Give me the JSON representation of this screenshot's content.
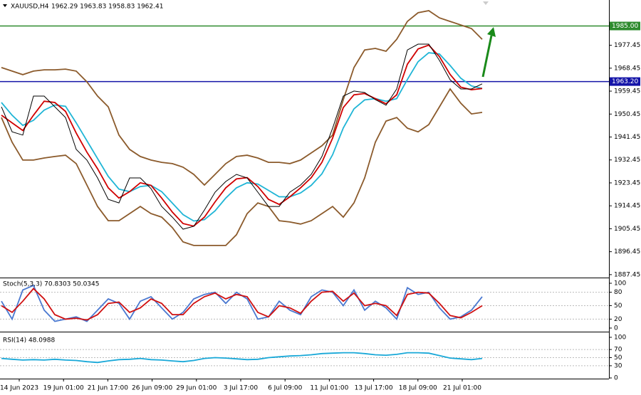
{
  "chart_data": [
    {
      "type": "line",
      "title": "XAUUSD,H4",
      "ohlc": "1962.29 1963.83 1958.83 1962.41",
      "ylim": [
        1886.3,
        1995.2
      ],
      "yticks": [
        1977.45,
        1968.45,
        1959.45,
        1950.45,
        1941.45,
        1932.45,
        1923.45,
        1914.45,
        1905.45,
        1896.45,
        1887.45
      ],
      "levels": [
        {
          "value": 1985,
          "label": "1985.00",
          "color": "#2e8b2e"
        },
        {
          "value": 1963.2,
          "label": "1963.20",
          "color": "#1414a8"
        }
      ],
      "x_labels": [
        "14 Jun 2023",
        "19 Jun 01:00",
        "21 Jun 17:00",
        "26 Jun 09:00",
        "29 Jun 01:00",
        "3 Jul 17:00",
        "6 Jul 09:00",
        "11 Jul 01:00",
        "13 Jul 17:00",
        "18 Jul 09:00",
        "21 Jul 01:00"
      ],
      "series": [
        {
          "name": "upper",
          "color": "#8b5a2b",
          "values": [
            1968.7,
            1967.3,
            1965.9,
            1967.3,
            1967.8,
            1967.8,
            1968.1,
            1967.3,
            1963.1,
            1957.5,
            1953.3,
            1942.2,
            1936.6,
            1933.8,
            1932.4,
            1931.5,
            1931.0,
            1929.6,
            1926.8,
            1922.6,
            1926.8,
            1931.0,
            1933.8,
            1934.3,
            1933.2,
            1931.5,
            1931.5,
            1931.0,
            1932.4,
            1935.2,
            1938.0,
            1942.2,
            1956.1,
            1968.7,
            1975.6,
            1976.2,
            1975.1,
            1979.8,
            1986.8,
            1990.2,
            1991.0,
            1988.2,
            1986.8,
            1985.4,
            1984.0,
            1979.8
          ]
        },
        {
          "name": "lower",
          "color": "#8b5a2b",
          "values": [
            1949.1,
            1939.4,
            1932.4,
            1932.4,
            1933.2,
            1933.8,
            1934.3,
            1931.0,
            1922.6,
            1914.2,
            1908.6,
            1908.6,
            1911.4,
            1914.2,
            1911.4,
            1910.0,
            1905.9,
            1900.3,
            1898.9,
            1898.9,
            1898.9,
            1898.9,
            1903.1,
            1911.4,
            1915.6,
            1914.2,
            1908.6,
            1908.1,
            1907.3,
            1908.6,
            1911.4,
            1914.2,
            1910.0,
            1915.6,
            1925.4,
            1939.4,
            1947.7,
            1949.1,
            1944.9,
            1943.5,
            1946.3,
            1953.3,
            1960.3,
            1954.7,
            1950.5,
            1951.1
          ]
        },
        {
          "name": "slow",
          "color": "#1fb5d6",
          "values": [
            1955,
            1950,
            1946,
            1948,
            1952,
            1954,
            1953.5,
            1947,
            1940,
            1933,
            1926,
            1921,
            1920,
            1922,
            1922.5,
            1920,
            1915.5,
            1911,
            1908.5,
            1909,
            1912.5,
            1917.5,
            1921.5,
            1923.5,
            1923,
            1920.5,
            1918,
            1918,
            1919.5,
            1922.5,
            1927,
            1934.5,
            1945,
            1952.5,
            1956,
            1956.5,
            1955.5,
            1956.5,
            1964,
            1971,
            1974.5,
            1974,
            1969.5,
            1964.5,
            1961.5,
            1960.5
          ]
        },
        {
          "name": "fast",
          "color": "#d00000",
          "values": [
            1950,
            1947,
            1944,
            1950,
            1955.5,
            1955,
            1951.5,
            1943,
            1935.5,
            1929,
            1921.5,
            1917.5,
            1920,
            1923.5,
            1922.5,
            1917.5,
            1912,
            1907.5,
            1906.5,
            1910,
            1916,
            1921.5,
            1925,
            1925.5,
            1922,
            1917,
            1915,
            1918,
            1921.5,
            1925.5,
            1931.5,
            1941,
            1953,
            1958,
            1958.5,
            1956.5,
            1954.5,
            1958,
            1970,
            1976,
            1977.5,
            1973,
            1966,
            1961,
            1960,
            1960.5
          ]
        },
        {
          "name": "price",
          "color": "#000000",
          "values": [
            1953.3,
            1943.5,
            1942.2,
            1957.5,
            1957.5,
            1953.3,
            1949.1,
            1936.6,
            1932.4,
            1925.4,
            1917.0,
            1915.6,
            1925.4,
            1925.4,
            1921.2,
            1914.2,
            1910.0,
            1905.3,
            1906.4,
            1912.8,
            1919.8,
            1924.0,
            1926.8,
            1925.4,
            1919.8,
            1914.2,
            1914.2,
            1919.8,
            1922.6,
            1926.8,
            1933.8,
            1944.9,
            1957.5,
            1959.5,
            1958.9,
            1956.1,
            1953.9,
            1960.3,
            1975.6,
            1977.9,
            1977.9,
            1971.5,
            1963.9,
            1960.3,
            1960.3,
            1962.3
          ]
        }
      ]
    },
    {
      "type": "line",
      "title": "Stoch(5,3,3) 70.8303 50.0345",
      "ylim": [
        -8,
        109.5
      ],
      "yticks": [
        100,
        80,
        50,
        20,
        0
      ],
      "levels": [
        80,
        50,
        20
      ],
      "series": [
        {
          "name": "main",
          "color": "#4a78d0",
          "values": [
            60,
            20,
            85,
            95,
            40,
            15,
            20,
            25,
            15,
            40,
            65,
            55,
            20,
            60,
            70,
            45,
            20,
            35,
            65,
            75,
            80,
            55,
            80,
            65,
            20,
            25,
            60,
            40,
            30,
            70,
            85,
            80,
            50,
            85,
            40,
            60,
            45,
            20,
            90,
            75,
            80,
            45,
            20,
            25,
            40,
            70
          ]
        },
        {
          "name": "signal",
          "color": "#d01010",
          "values": [
            50,
            35,
            60,
            88,
            65,
            30,
            20,
            22,
            18,
            30,
            55,
            58,
            35,
            45,
            65,
            55,
            30,
            30,
            55,
            70,
            78,
            65,
            75,
            70,
            35,
            25,
            50,
            45,
            33,
            60,
            80,
            82,
            60,
            78,
            50,
            55,
            50,
            28,
            75,
            80,
            78,
            55,
            28,
            23,
            35,
            50
          ]
        }
      ]
    },
    {
      "type": "line",
      "title": "RSI(14) 48.0988",
      "ylim": [
        -1.7,
        110.4
      ],
      "yticks": [
        100,
        70,
        50,
        30,
        0
      ],
      "levels": [
        70,
        50,
        30
      ],
      "series": [
        {
          "name": "rsi",
          "color": "#18a8d8",
          "values": [
            48,
            46,
            44,
            45,
            44,
            46,
            44,
            43,
            40,
            38,
            42,
            45,
            46,
            48,
            45,
            44,
            42,
            40,
            43,
            48,
            50,
            49,
            47,
            45,
            46,
            50,
            52,
            54,
            55,
            57,
            60,
            61,
            62,
            62,
            60,
            57,
            56,
            58,
            62,
            62,
            61,
            55,
            49,
            47,
            45,
            48
          ]
        }
      ]
    }
  ]
}
